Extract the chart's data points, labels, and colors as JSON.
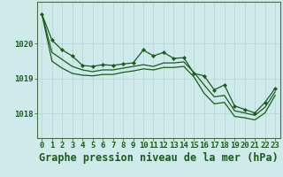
{
  "title": "Graphe pression niveau de la mer (hPa)",
  "background_color": "#ceeaea",
  "grid_color": "#b8d8d8",
  "line_color": "#1a5c1a",
  "marker_color": "#1a5c1a",
  "xlim": [
    -0.5,
    23.5
  ],
  "ylim": [
    1017.3,
    1021.2
  ],
  "xticks": [
    0,
    1,
    2,
    3,
    4,
    5,
    6,
    7,
    8,
    9,
    10,
    11,
    12,
    13,
    14,
    15,
    16,
    17,
    18,
    19,
    20,
    21,
    22,
    23
  ],
  "yticks": [
    1018,
    1019,
    1020
  ],
  "line1": [
    1020.85,
    1020.1,
    1019.82,
    1019.65,
    1019.38,
    1019.35,
    1019.4,
    1019.38,
    1019.42,
    1019.45,
    1019.82,
    1019.65,
    1019.75,
    1019.58,
    1019.6,
    1019.15,
    1019.08,
    1018.68,
    1018.82,
    1018.22,
    1018.12,
    1018.02,
    1018.32,
    1018.72
  ],
  "line2": [
    1020.85,
    1019.75,
    1019.55,
    1019.35,
    1019.25,
    1019.2,
    1019.25,
    1019.25,
    1019.3,
    1019.35,
    1019.4,
    1019.35,
    1019.45,
    1019.45,
    1019.48,
    1019.18,
    1018.82,
    1018.48,
    1018.52,
    1018.08,
    1018.02,
    1017.95,
    1018.18,
    1018.62
  ],
  "line3": [
    1020.85,
    1019.5,
    1019.3,
    1019.15,
    1019.1,
    1019.08,
    1019.12,
    1019.12,
    1019.18,
    1019.22,
    1019.28,
    1019.25,
    1019.32,
    1019.32,
    1019.35,
    1019.05,
    1018.58,
    1018.28,
    1018.32,
    1017.92,
    1017.88,
    1017.82,
    1018.02,
    1018.52
  ],
  "title_fontsize": 8.5,
  "tick_fontsize": 6.5,
  "title_color": "#1a5c1a",
  "tick_color": "#1a5c1a",
  "axis_color": "#4a6e4a"
}
